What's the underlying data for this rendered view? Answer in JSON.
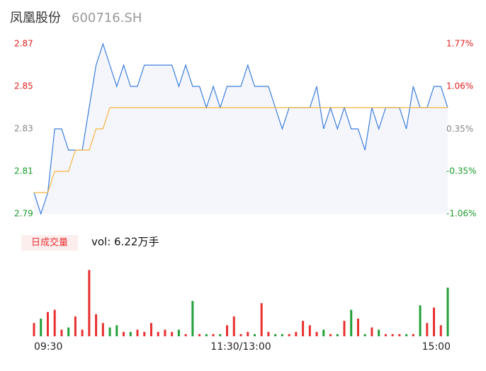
{
  "title": "凤凰股份",
  "code": "600716.SH",
  "chart_data": [
    {
      "type": "line",
      "x": [
        0,
        4,
        8,
        12,
        16,
        20,
        24,
        28,
        32,
        36,
        40,
        44,
        48,
        52,
        56,
        60,
        64,
        68,
        72,
        76,
        80,
        84,
        88,
        92,
        96,
        100,
        104,
        108,
        112,
        116,
        120,
        124,
        128,
        132,
        136,
        140,
        144,
        148,
        152,
        156,
        160,
        164,
        168,
        172,
        176,
        180,
        184,
        188,
        192,
        196,
        200,
        204,
        208,
        212,
        216,
        220,
        224,
        228,
        232,
        236,
        240
      ],
      "xlim": [
        0,
        240
      ],
      "xticks": [
        {
          "value": 0,
          "label": "09:30"
        },
        {
          "value": 120,
          "label": "11:30/13:00"
        },
        {
          "value": 240,
          "label": "15:00"
        }
      ],
      "ylim": [
        2.79,
        2.87
      ],
      "yticks": [
        2.79,
        2.81,
        2.83,
        2.85,
        2.87
      ],
      "ytick_colors": [
        "#1a9a2a",
        "#1a9a2a",
        "#888888",
        "#e02020",
        "#e02020"
      ],
      "y2lim": [
        -1.06,
        1.77
      ],
      "y2ticks": [
        {
          "value": -1.06,
          "label": "-1.06%"
        },
        {
          "value": -0.35,
          "label": "-0.35%"
        },
        {
          "value": 0.35,
          "label": "0.35%"
        },
        {
          "value": 1.06,
          "label": "1.06%"
        },
        {
          "value": 1.77,
          "label": "1.77%"
        }
      ],
      "y2tick_colors": [
        "#1a9a2a",
        "#1a9a2a",
        "#888888",
        "#e02020",
        "#e02020"
      ],
      "area_color": "#f4f6fc",
      "series": [
        {
          "color": "#3b7ddd",
          "values": [
            2.8,
            2.79,
            2.8,
            2.83,
            2.83,
            2.82,
            2.82,
            2.82,
            2.84,
            2.86,
            2.87,
            2.86,
            2.85,
            2.86,
            2.85,
            2.85,
            2.86,
            2.86,
            2.86,
            2.86,
            2.86,
            2.85,
            2.86,
            2.85,
            2.85,
            2.84,
            2.85,
            2.84,
            2.85,
            2.85,
            2.85,
            2.86,
            2.85,
            2.85,
            2.85,
            2.84,
            2.83,
            2.84,
            2.84,
            2.84,
            2.84,
            2.85,
            2.83,
            2.84,
            2.83,
            2.84,
            2.83,
            2.83,
            2.82,
            2.84,
            2.83,
            2.84,
            2.84,
            2.84,
            2.83,
            2.85,
            2.84,
            2.84,
            2.85,
            2.85,
            2.84
          ]
        },
        {
          "color": "#f5b53a",
          "values": [
            2.8,
            2.8,
            2.8,
            2.81,
            2.81,
            2.81,
            2.82,
            2.82,
            2.82,
            2.83,
            2.83,
            2.84,
            2.84,
            2.84,
            2.84,
            2.84,
            2.84,
            2.84,
            2.84,
            2.84,
            2.84,
            2.84,
            2.84,
            2.84,
            2.84,
            2.84,
            2.84,
            2.84,
            2.84,
            2.84,
            2.84,
            2.84,
            2.84,
            2.84,
            2.84,
            2.84,
            2.84,
            2.84,
            2.84,
            2.84,
            2.84,
            2.84,
            2.84,
            2.84,
            2.84,
            2.84,
            2.84,
            2.84,
            2.84,
            2.84,
            2.84,
            2.84,
            2.84,
            2.84,
            2.84,
            2.84,
            2.84,
            2.84,
            2.84,
            2.84,
            2.84
          ]
        }
      ]
    },
    {
      "type": "bar",
      "label": "日成交量",
      "summary": "vol: 6.22万手",
      "ylim": [
        0,
        3300
      ],
      "up_color": "#e83030",
      "down_color": "#22a038",
      "values": [
        600,
        800,
        1100,
        1200,
        300,
        400,
        900,
        300,
        3000,
        1000,
        600,
        400,
        500,
        200,
        200,
        300,
        200,
        600,
        200,
        300,
        200,
        300,
        100,
        1600,
        100,
        100,
        100,
        100,
        500,
        900,
        100,
        200,
        100,
        1500,
        200,
        100,
        100,
        100,
        200,
        700,
        500,
        200,
        300,
        100,
        100,
        700,
        1200,
        800,
        100,
        400,
        300,
        100,
        100,
        100,
        100,
        100,
        1400,
        600,
        1300,
        500,
        2200
      ]
    }
  ]
}
